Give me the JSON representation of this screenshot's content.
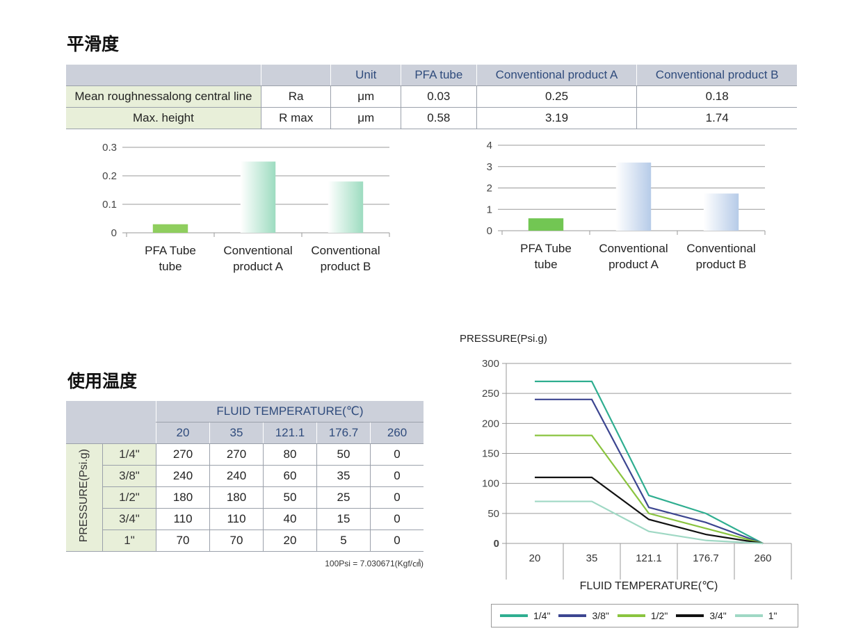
{
  "smoothness": {
    "title": "平滑度",
    "headers": [
      "",
      "",
      "Unit",
      "PFA tube",
      "Conventional product A",
      "Conventional product B"
    ],
    "rows": [
      {
        "label": "Mean roughnessalong central line",
        "symbol": "Ra",
        "unit": "μm",
        "values": [
          "0.03",
          "0.25",
          "0.18"
        ]
      },
      {
        "label": "Max. height",
        "symbol": "R max",
        "unit": "μm",
        "values": [
          "0.58",
          "3.19",
          "1.74"
        ]
      }
    ]
  },
  "temperature": {
    "title": "使用温度",
    "fluid_header": "FLUID TEMPERATURE(℃)",
    "temps": [
      "20",
      "35",
      "121.1",
      "176.7",
      "260"
    ],
    "pressure_label": "PRESSURE(Psi.g)",
    "rows": [
      {
        "size": "1/4\"",
        "values": [
          "270",
          "270",
          "80",
          "50",
          "0"
        ]
      },
      {
        "size": "3/8\"",
        "values": [
          "240",
          "240",
          "60",
          "35",
          "0"
        ]
      },
      {
        "size": "1/2\"",
        "values": [
          "180",
          "180",
          "50",
          "25",
          "0"
        ]
      },
      {
        "size": "3/4\"",
        "values": [
          "110",
          "110",
          "40",
          "15",
          "0"
        ]
      },
      {
        "size": "1\"",
        "values": [
          "70",
          "70",
          "20",
          "5",
          "0"
        ]
      }
    ],
    "note": "100Psi = 7.030671(Kgf/㎠)"
  },
  "chart_data": [
    {
      "type": "bar",
      "categories": [
        "PFA Tube\ntube",
        "Conventional\nproduct A",
        "Conventional\nproduct B"
      ],
      "values": [
        0.03,
        0.25,
        0.18
      ],
      "yticks": [
        "0.3",
        "0.2",
        "0.1",
        "0"
      ],
      "ylim": [
        0,
        0.3
      ],
      "colors": [
        "#8fce5e",
        "#9ddcc0",
        "#9ddcc0"
      ],
      "grid": true
    },
    {
      "type": "bar",
      "categories": [
        "PFA Tube\ntube",
        "Conventional\nproduct A",
        "Conventional\nproduct B"
      ],
      "values": [
        0.58,
        3.19,
        1.74
      ],
      "yticks": [
        "4",
        "3",
        "2",
        "1",
        "0"
      ],
      "ylim": [
        0,
        4
      ],
      "colors": [
        "#72c653",
        "#b6cbe8",
        "#b6cbe8"
      ],
      "grid": true
    },
    {
      "type": "line",
      "title": "PRESSURE(Psi.g)",
      "xlabel": "FLUID TEMPERATURE(℃)",
      "categories": [
        "20",
        "35",
        "121.1",
        "176.7",
        "260"
      ],
      "yticks": [
        "300",
        "250",
        "200",
        "150",
        "100",
        "50",
        "0"
      ],
      "ylim": [
        0,
        300
      ],
      "grid": true,
      "legend_position": "bottom",
      "series": [
        {
          "name": "1/4\"",
          "values": [
            270,
            270,
            80,
            50,
            0
          ],
          "color": "#2fae90"
        },
        {
          "name": "3/8\"",
          "values": [
            240,
            240,
            60,
            35,
            0
          ],
          "color": "#3c4590"
        },
        {
          "name": "1/2\"",
          "values": [
            180,
            180,
            50,
            25,
            0
          ],
          "color": "#8ac43f"
        },
        {
          "name": "3/4\"",
          "values": [
            110,
            110,
            40,
            15,
            0
          ],
          "color": "#111111"
        },
        {
          "name": "1\"",
          "values": [
            70,
            70,
            20,
            5,
            0
          ],
          "color": "#9fd8c4"
        }
      ]
    }
  ]
}
